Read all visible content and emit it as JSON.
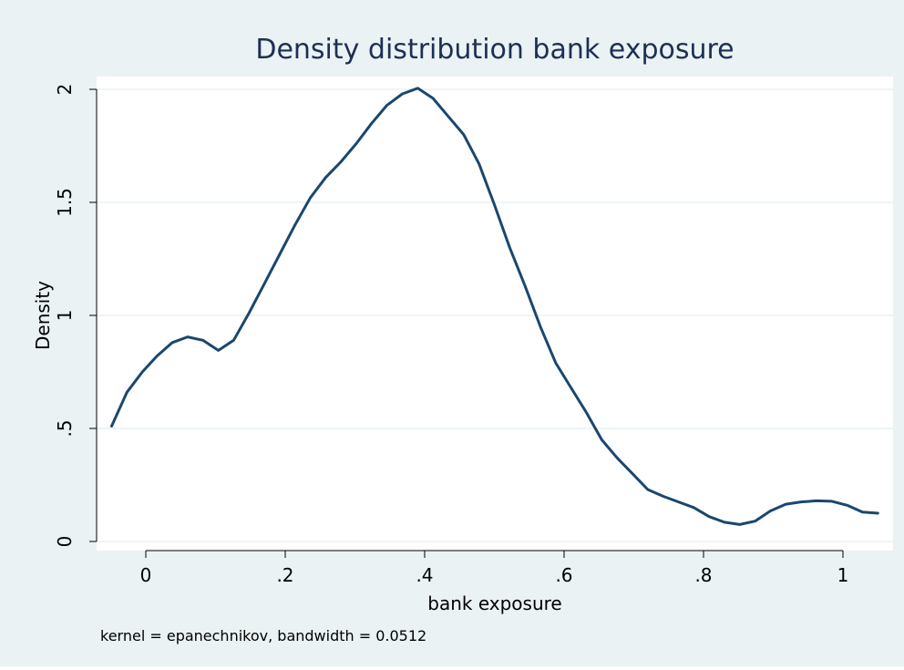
{
  "chart_data": {
    "type": "line",
    "title": "Density distribution bank exposure",
    "xlabel": "bank exposure",
    "ylabel": "Density",
    "note": "kernel = epanechnikov, bandwidth = 0.0512",
    "xlim": [
      -0.05,
      1.05
    ],
    "ylim": [
      0,
      2.0
    ],
    "x_ticks": [
      {
        "value": 0,
        "label": "0"
      },
      {
        "value": 0.2,
        "label": ".2"
      },
      {
        "value": 0.4,
        "label": ".4"
      },
      {
        "value": 0.6,
        "label": ".6"
      },
      {
        "value": 0.8,
        "label": ".8"
      },
      {
        "value": 1,
        "label": "1"
      }
    ],
    "y_ticks": [
      {
        "value": 0,
        "label": "0"
      },
      {
        "value": 0.5,
        "label": ".5"
      },
      {
        "value": 1,
        "label": "1"
      },
      {
        "value": 1.5,
        "label": "1.5"
      },
      {
        "value": 2,
        "label": "2"
      }
    ],
    "grid": true,
    "colors": {
      "outer_background": "#eaf2f3",
      "plot_background": "#ffffff",
      "grid": "#eaf2f3",
      "line": "#1a476f",
      "title": "#1e2f55",
      "text": "#000000"
    },
    "series": [
      {
        "x": [
          -0.049,
          -0.027,
          -0.005,
          0.016,
          0.038,
          0.06,
          0.082,
          0.104,
          0.126,
          0.148,
          0.17,
          0.192,
          0.214,
          0.236,
          0.258,
          0.28,
          0.302,
          0.324,
          0.346,
          0.368,
          0.39,
          0.412,
          0.434,
          0.456,
          0.478,
          0.5,
          0.522,
          0.544,
          0.566,
          0.588,
          0.61,
          0.632,
          0.654,
          0.676,
          0.698,
          0.72,
          0.742,
          0.764,
          0.786,
          0.808,
          0.83,
          0.852,
          0.874,
          0.896,
          0.918,
          0.94,
          0.962,
          0.984,
          1.006,
          1.028,
          1.05
        ],
        "y": [
          0.51,
          0.66,
          0.75,
          0.82,
          0.88,
          0.905,
          0.89,
          0.845,
          0.89,
          1.01,
          1.14,
          1.27,
          1.4,
          1.52,
          1.61,
          1.68,
          1.76,
          1.85,
          1.93,
          1.98,
          2.005,
          1.96,
          1.88,
          1.8,
          1.67,
          1.49,
          1.3,
          1.13,
          0.95,
          0.79,
          0.68,
          0.57,
          0.45,
          0.37,
          0.3,
          0.23,
          0.2,
          0.175,
          0.15,
          0.11,
          0.085,
          0.075,
          0.09,
          0.135,
          0.165,
          0.175,
          0.18,
          0.178,
          0.16,
          0.13,
          0.125
        ]
      }
    ]
  }
}
